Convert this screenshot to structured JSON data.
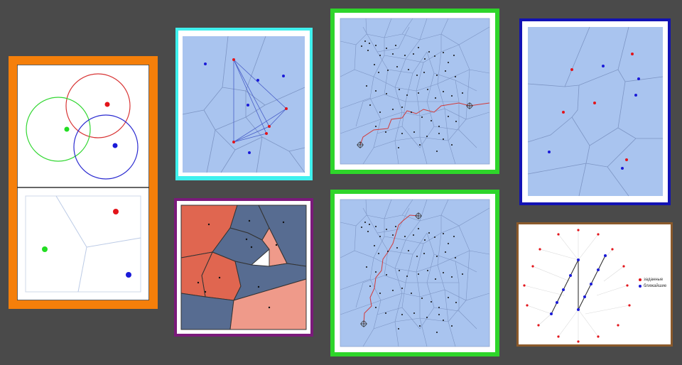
{
  "colors": {
    "background": "#4a4a4a",
    "orange_frame": "#f57f0a",
    "cyan_frame": "#3ff0ee",
    "green_frame": "#2ed52a",
    "blue_frame": "#1212b4",
    "purple_frame": "#7a1a7a",
    "brown_frame": "#8b5a2b",
    "voronoi_fill": "#a9c4ef",
    "voronoi_edge": "#7d95c4",
    "cell_red": "#e06650",
    "cell_salmon": "#ef9a8a",
    "cell_slate": "#576c91",
    "point_red": "#e3141a",
    "point_blue": "#1a1ad8",
    "point_green": "#22dd22",
    "path_red": "#d23a3a"
  },
  "legend": {
    "given_label": "заданные",
    "nearest_label": "ближайшие"
  }
}
